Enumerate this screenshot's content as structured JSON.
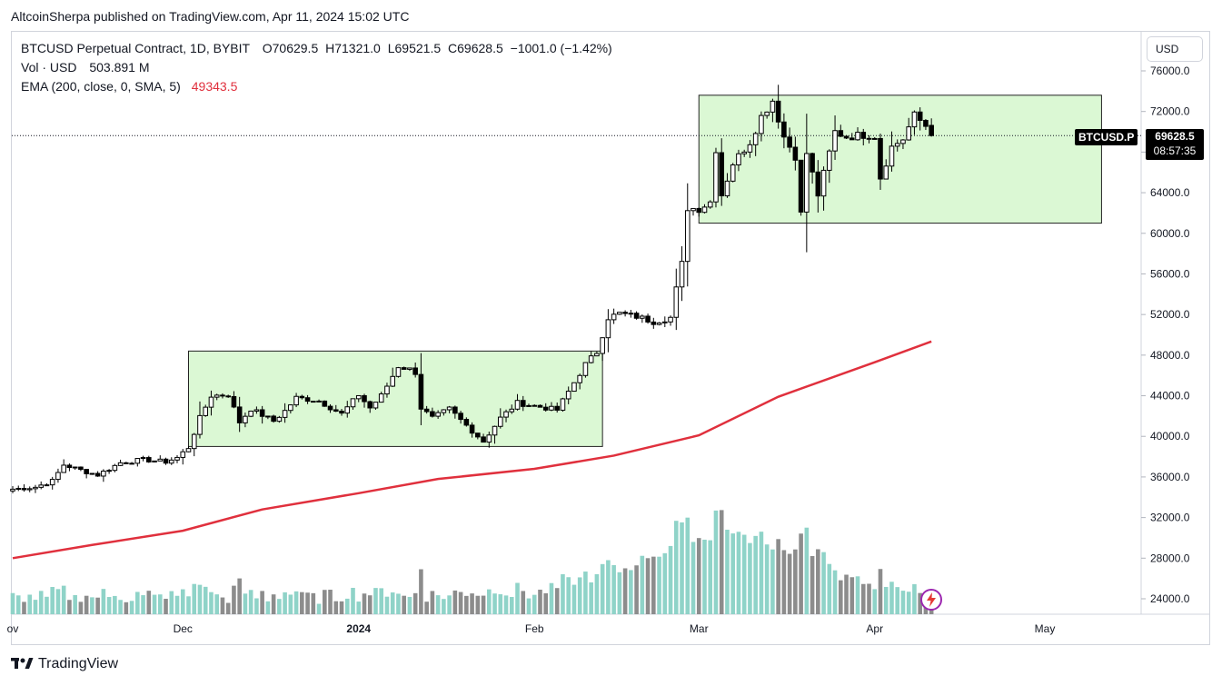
{
  "header": {
    "publisher_line": "AltcoinSherpa published on TradingView.com, Apr 11, 2024 15:02 UTC"
  },
  "legend": {
    "title": "BTCUSD Perpetual Contract, 1D, BYBIT",
    "open": "O70629.5",
    "high": "H71321.0",
    "low": "L69521.5",
    "close": "C69628.5",
    "change": "−1001.0 (−1.42%)",
    "volume_label": "Vol · USD",
    "volume_value": "503.891 M",
    "ema_label": "EMA (200, close, 0, SMA, 5)",
    "ema_value": "49343.5"
  },
  "toolbar": {
    "currency_label": "USD"
  },
  "price_tag": {
    "symbol": "BTCUSD.P",
    "price": "69628.5",
    "countdown": "08:57:35"
  },
  "footer": {
    "brand": "TradingView"
  },
  "colors": {
    "up": "#ffffff",
    "down": "#000000",
    "ema": "#e0303d",
    "box_fill": "#ccf5c2",
    "vol_up": "#8fd3c8",
    "vol_down": "#8c8c8c",
    "alert": "#9c27b0"
  },
  "icons": {
    "logo": "tradingview-logo-icon",
    "alert": "lightning-alert-icon"
  },
  "chart_data": {
    "type": "candlestick",
    "title": "BTCUSD Perpetual Contract, 1D, BYBIT",
    "ylim": [
      22000,
      78000
    ],
    "y_ticks": [
      24000,
      28000,
      32000,
      36000,
      40000,
      44000,
      48000,
      52000,
      56000,
      60000,
      64000,
      68000,
      72000,
      76000
    ],
    "y_tick_labels": [
      "24000.0",
      "28000.0",
      "32000.0",
      "36000.0",
      "40000.0",
      "44000.0",
      "48000.0",
      "52000.0",
      "56000.0",
      "60000.0",
      "64000.0",
      "68000.0",
      "72000.0",
      "76000.0"
    ],
    "x_labels": [
      {
        "text": "ov",
        "date": "2023-11-01"
      },
      {
        "text": "Dec",
        "date": "2023-12-01"
      },
      {
        "text": "2024",
        "date": "2024-01-01",
        "bold": true
      },
      {
        "text": "Feb",
        "date": "2024-02-01"
      },
      {
        "text": "Mar",
        "date": "2024-03-01"
      },
      {
        "text": "Apr",
        "date": "2024-04-01"
      },
      {
        "text": "May",
        "date": "2024-05-01"
      }
    ],
    "x_start_date": "2023-11-01",
    "x_end_date": "2024-05-22",
    "last_price": 69628.5,
    "close_anchors": [
      [
        "2023-11-01",
        34800
      ],
      [
        "2023-11-05",
        35000
      ],
      [
        "2023-11-08",
        35600
      ],
      [
        "2023-11-10",
        37200
      ],
      [
        "2023-11-14",
        36500
      ],
      [
        "2023-11-16",
        36200
      ],
      [
        "2023-11-20",
        37400
      ],
      [
        "2023-11-24",
        37700
      ],
      [
        "2023-11-28",
        37500
      ],
      [
        "2023-11-30",
        37900
      ],
      [
        "2023-12-02",
        38900
      ],
      [
        "2023-12-04",
        41800
      ],
      [
        "2023-12-06",
        44000
      ],
      [
        "2023-12-09",
        44100
      ],
      [
        "2023-12-11",
        41400
      ],
      [
        "2023-12-13",
        42700
      ],
      [
        "2023-12-17",
        41500
      ],
      [
        "2023-12-19",
        42500
      ],
      [
        "2023-12-21",
        43800
      ],
      [
        "2023-12-25",
        43500
      ],
      [
        "2023-12-29",
        42200
      ],
      [
        "2024-01-01",
        44100
      ],
      [
        "2024-01-03",
        42800
      ],
      [
        "2024-01-05",
        44000
      ],
      [
        "2024-01-08",
        46900
      ],
      [
        "2024-01-10",
        46600
      ],
      [
        "2024-01-11",
        46300
      ],
      [
        "2024-01-12",
        42800
      ],
      [
        "2024-01-14",
        41800
      ],
      [
        "2024-01-17",
        42700
      ],
      [
        "2024-01-19",
        41600
      ],
      [
        "2024-01-23",
        39500
      ],
      [
        "2024-01-26",
        41800
      ],
      [
        "2024-01-29",
        43300
      ],
      [
        "2024-02-01",
        43000
      ],
      [
        "2024-02-05",
        42600
      ],
      [
        "2024-02-08",
        45300
      ],
      [
        "2024-02-10",
        47100
      ],
      [
        "2024-02-12",
        48300
      ],
      [
        "2024-02-14",
        51700
      ],
      [
        "2024-02-16",
        52100
      ],
      [
        "2024-02-19",
        51800
      ],
      [
        "2024-02-22",
        51300
      ],
      [
        "2024-02-25",
        51700
      ],
      [
        "2024-02-26",
        54500
      ],
      [
        "2024-02-27",
        57000
      ],
      [
        "2024-02-28",
        62500
      ],
      [
        "2024-03-01",
        62400
      ],
      [
        "2024-03-03",
        63100
      ],
      [
        "2024-03-04",
        68300
      ],
      [
        "2024-03-05",
        63800
      ],
      [
        "2024-03-07",
        66900
      ],
      [
        "2024-03-10",
        69000
      ],
      [
        "2024-03-12",
        71500
      ],
      [
        "2024-03-14",
        73100
      ],
      [
        "2024-03-16",
        69500
      ],
      [
        "2024-03-18",
        67600
      ],
      [
        "2024-03-19",
        61900
      ],
      [
        "2024-03-20",
        67900
      ],
      [
        "2024-03-22",
        63800
      ],
      [
        "2024-03-25",
        70000
      ],
      [
        "2024-03-27",
        69500
      ],
      [
        "2024-03-30",
        69700
      ],
      [
        "2024-04-01",
        69600
      ],
      [
        "2024-04-02",
        65500
      ],
      [
        "2024-04-04",
        68500
      ],
      [
        "2024-04-06",
        69300
      ],
      [
        "2024-04-08",
        71600
      ],
      [
        "2024-04-10",
        70600
      ],
      [
        "2024-04-11",
        69628.5
      ]
    ],
    "series": [
      {
        "name": "EMA (200, close, 0, SMA, 5)",
        "type": "line",
        "points": [
          [
            "2023-11-01",
            28000
          ],
          [
            "2023-11-15",
            29300
          ],
          [
            "2023-12-01",
            30700
          ],
          [
            "2023-12-15",
            32800
          ],
          [
            "2024-01-01",
            34400
          ],
          [
            "2024-01-15",
            35800
          ],
          [
            "2024-02-01",
            36800
          ],
          [
            "2024-02-15",
            38100
          ],
          [
            "2024-03-01",
            40100
          ],
          [
            "2024-03-15",
            43900
          ],
          [
            "2024-04-01",
            47300
          ],
          [
            "2024-04-11",
            49343.5
          ]
        ]
      }
    ],
    "consolidation_boxes": [
      {
        "x_from": "2023-12-02",
        "x_to": "2024-02-13",
        "y_from": 39000,
        "y_to": 48400
      },
      {
        "x_from": "2024-03-01",
        "x_to": "2024-05-11",
        "y_from": 61000,
        "y_to": 73600
      }
    ],
    "volume": {
      "label": "Vol · USD",
      "last_value": "503.891 M",
      "note": "relative daily volume; peak near 2024-03-05"
    }
  }
}
